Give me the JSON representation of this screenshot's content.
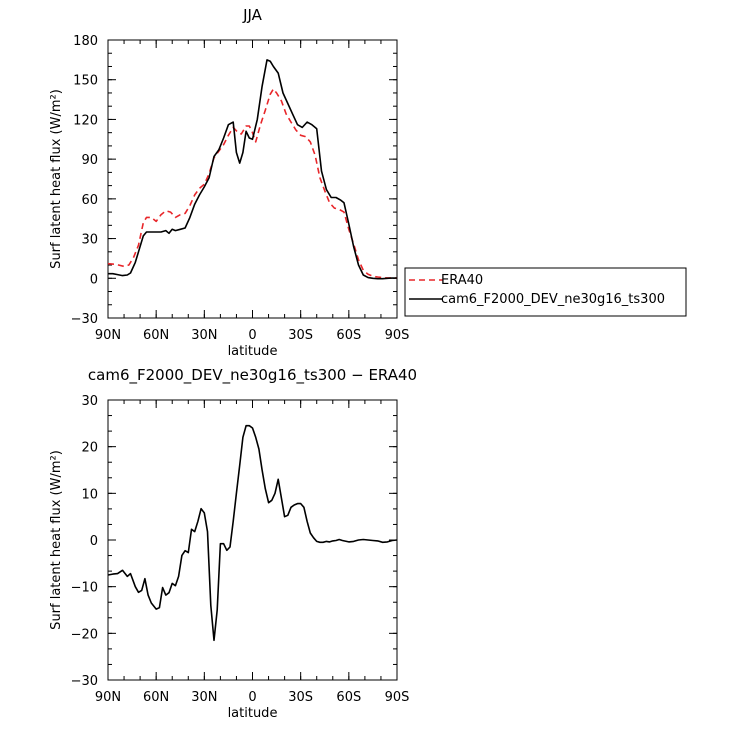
{
  "chart_data": [
    {
      "type": "line",
      "title": "JJA",
      "xlabel": "latitude",
      "ylabel": "Surf latent heat flux (W/m²)",
      "ylim": [
        -30,
        180
      ],
      "yticks": [
        -30,
        0,
        30,
        60,
        90,
        120,
        150,
        180
      ],
      "xticks": [
        "90N",
        "60N",
        "30N",
        "0",
        "30S",
        "60S",
        "90S"
      ],
      "xlim": [
        90,
        -90
      ],
      "x_axis_note": "latitude in degrees, positive = north, axis runs 90N to 90S",
      "legend": {
        "placement": "right",
        "entries": [
          "ERA40",
          "cam6_F2000_DEV_ne30g16_ts300"
        ]
      },
      "series": [
        {
          "name": "ERA40",
          "color": "#e8262a",
          "dash": "dashed",
          "points": [
            [
              90,
              11
            ],
            [
              85,
              10.5
            ],
            [
              80,
              9
            ],
            [
              77,
              10
            ],
            [
              74,
              16
            ],
            [
              71,
              25
            ],
            [
              68,
              42
            ],
            [
              66,
              46
            ],
            [
              63,
              46
            ],
            [
              60,
              43
            ],
            [
              57,
              48
            ],
            [
              54,
              51
            ],
            [
              51,
              50
            ],
            [
              48,
              46
            ],
            [
              45,
              48
            ],
            [
              42,
              49
            ],
            [
              39,
              55
            ],
            [
              36,
              63
            ],
            [
              33,
              68
            ],
            [
              30,
              71
            ],
            [
              27,
              79
            ],
            [
              24,
              91
            ],
            [
              21,
              96
            ],
            [
              18,
              101
            ],
            [
              15,
              108
            ],
            [
              12,
              114
            ],
            [
              9,
              110
            ],
            [
              7,
              109
            ],
            [
              4,
              115
            ],
            [
              2,
              115
            ],
            [
              0,
              110
            ],
            [
              -2,
              103
            ],
            [
              -5,
              116
            ],
            [
              -8,
              127
            ],
            [
              -11,
              139
            ],
            [
              -13,
              143
            ],
            [
              -15,
              140
            ],
            [
              -18,
              134
            ],
            [
              -21,
              124
            ],
            [
              -24,
              118
            ],
            [
              -27,
              112
            ],
            [
              -30,
              108
            ],
            [
              -33,
              107
            ],
            [
              -36,
              103
            ],
            [
              -39,
              93
            ],
            [
              -42,
              76
            ],
            [
              -45,
              66
            ],
            [
              -48,
              57
            ],
            [
              -51,
              53
            ],
            [
              -54,
              52
            ],
            [
              -57,
              50
            ],
            [
              -60,
              37
            ],
            [
              -63,
              26
            ],
            [
              -66,
              14
            ],
            [
              -69,
              6
            ],
            [
              -72,
              3
            ],
            [
              -75,
              1.5
            ],
            [
              -78,
              1
            ],
            [
              -81,
              0.5
            ],
            [
              -84,
              0.3
            ],
            [
              -87,
              0.2
            ],
            [
              -90,
              0.2
            ]
          ]
        },
        {
          "name": "cam6_F2000_DEV_ne30g16_ts300",
          "color": "#000000",
          "dash": "solid",
          "points": [
            [
              90,
              3.5
            ],
            [
              87,
              3.5
            ],
            [
              84,
              2.8
            ],
            [
              81,
              2
            ],
            [
              78,
              2.5
            ],
            [
              76,
              4
            ],
            [
              73,
              12
            ],
            [
              71,
              20
            ],
            [
              68,
              32
            ],
            [
              66,
              35
            ],
            [
              63,
              35
            ],
            [
              60,
              35
            ],
            [
              57,
              35
            ],
            [
              54,
              36
            ],
            [
              52,
              34
            ],
            [
              50,
              37
            ],
            [
              48,
              36
            ],
            [
              45,
              37
            ],
            [
              42,
              38
            ],
            [
              39,
              46
            ],
            [
              36,
              56
            ],
            [
              33,
              63
            ],
            [
              30,
              69
            ],
            [
              27,
              76
            ],
            [
              24,
              92
            ],
            [
              21,
              97
            ],
            [
              18,
              106
            ],
            [
              15,
              116
            ],
            [
              12,
              118
            ],
            [
              10,
              95
            ],
            [
              8,
              87
            ],
            [
              6,
              95
            ],
            [
              4,
              111
            ],
            [
              2,
              106
            ],
            [
              0,
              105
            ],
            [
              -3,
              120
            ],
            [
              -6,
              145
            ],
            [
              -9,
              165
            ],
            [
              -11,
              164
            ],
            [
              -13,
              160
            ],
            [
              -16,
              155
            ],
            [
              -19,
              140
            ],
            [
              -22,
              132
            ],
            [
              -25,
              124
            ],
            [
              -28,
              116
            ],
            [
              -31,
              114
            ],
            [
              -34,
              118
            ],
            [
              -37,
              116
            ],
            [
              -40,
              113
            ],
            [
              -43,
              81
            ],
            [
              -46,
              67
            ],
            [
              -49,
              61
            ],
            [
              -52,
              61
            ],
            [
              -55,
              59
            ],
            [
              -57,
              57
            ],
            [
              -60,
              41
            ],
            [
              -63,
              24
            ],
            [
              -66,
              10
            ],
            [
              -69,
              2.5
            ],
            [
              -72,
              0.5
            ],
            [
              -75,
              0
            ],
            [
              -78,
              -0.3
            ],
            [
              -81,
              -0.3
            ],
            [
              -84,
              0
            ],
            [
              -87,
              0.2
            ],
            [
              -90,
              0.2
            ]
          ]
        }
      ]
    },
    {
      "type": "line",
      "title": "cam6_F2000_DEV_ne30g16_ts300 − ERA40",
      "xlabel": "latitude",
      "ylabel": "Surf latent heat flux (W/m²)",
      "ylim": [
        -30,
        30
      ],
      "yticks": [
        -30,
        -20,
        -10,
        0,
        10,
        20,
        30
      ],
      "xticks": [
        "90N",
        "60N",
        "30N",
        "0",
        "30S",
        "60S",
        "90S"
      ],
      "xlim": [
        90,
        -90
      ],
      "series": [
        {
          "color": "#000000",
          "dash": "solid",
          "points": [
            [
              90,
              -7.5
            ],
            [
              87,
              -7.3
            ],
            [
              84,
              -7.2
            ],
            [
              81,
              -6.5
            ],
            [
              78,
              -7.8
            ],
            [
              76,
              -7.2
            ],
            [
              73,
              -10
            ],
            [
              71,
              -11.2
            ],
            [
              69,
              -10.8
            ],
            [
              67,
              -8.3
            ],
            [
              65,
              -11.8
            ],
            [
              63,
              -13.5
            ],
            [
              60,
              -14.8
            ],
            [
              58,
              -14.5
            ],
            [
              56,
              -10.2
            ],
            [
              54,
              -11.8
            ],
            [
              52,
              -11.3
            ],
            [
              50,
              -9.3
            ],
            [
              48,
              -9.8
            ],
            [
              46,
              -7.8
            ],
            [
              44,
              -3.3
            ],
            [
              42,
              -2.3
            ],
            [
              40,
              -2.7
            ],
            [
              38,
              2.3
            ],
            [
              36,
              1.8
            ],
            [
              34,
              4
            ],
            [
              32,
              6.7
            ],
            [
              30,
              5.8
            ],
            [
              28,
              1.8
            ],
            [
              26,
              -14
            ],
            [
              24,
              -21.5
            ],
            [
              22,
              -15
            ],
            [
              20,
              -0.8
            ],
            [
              18,
              -0.8
            ],
            [
              16,
              -2.2
            ],
            [
              14,
              -1.5
            ],
            [
              12,
              4
            ],
            [
              10,
              10
            ],
            [
              8,
              16
            ],
            [
              6,
              22
            ],
            [
              4,
              24.5
            ],
            [
              2,
              24.5
            ],
            [
              0,
              24
            ],
            [
              -2,
              22
            ],
            [
              -4,
              19.5
            ],
            [
              -6,
              15
            ],
            [
              -8,
              11
            ],
            [
              -10,
              8
            ],
            [
              -12,
              8.5
            ],
            [
              -14,
              10
            ],
            [
              -16,
              13
            ],
            [
              -18,
              9
            ],
            [
              -20,
              5
            ],
            [
              -22,
              5.3
            ],
            [
              -24,
              7
            ],
            [
              -26,
              7.5
            ],
            [
              -28,
              7.8
            ],
            [
              -30,
              7.8
            ],
            [
              -32,
              7
            ],
            [
              -34,
              4
            ],
            [
              -36,
              1.5
            ],
            [
              -38,
              0.5
            ],
            [
              -40,
              -0.3
            ],
            [
              -42,
              -0.5
            ],
            [
              -44,
              -0.5
            ],
            [
              -46,
              -0.3
            ],
            [
              -48,
              -0.4
            ],
            [
              -50,
              -0.2
            ],
            [
              -52,
              -0.1
            ],
            [
              -54,
              0.1
            ],
            [
              -56,
              -0.1
            ],
            [
              -60,
              -0.4
            ],
            [
              -63,
              -0.3
            ],
            [
              -66,
              0
            ],
            [
              -69,
              0.1
            ],
            [
              -72,
              0
            ],
            [
              -75,
              -0.1
            ],
            [
              -78,
              -0.2
            ],
            [
              -81,
              -0.5
            ],
            [
              -84,
              -0.4
            ],
            [
              -87,
              -0.1
            ],
            [
              -90,
              0
            ]
          ]
        }
      ]
    }
  ]
}
